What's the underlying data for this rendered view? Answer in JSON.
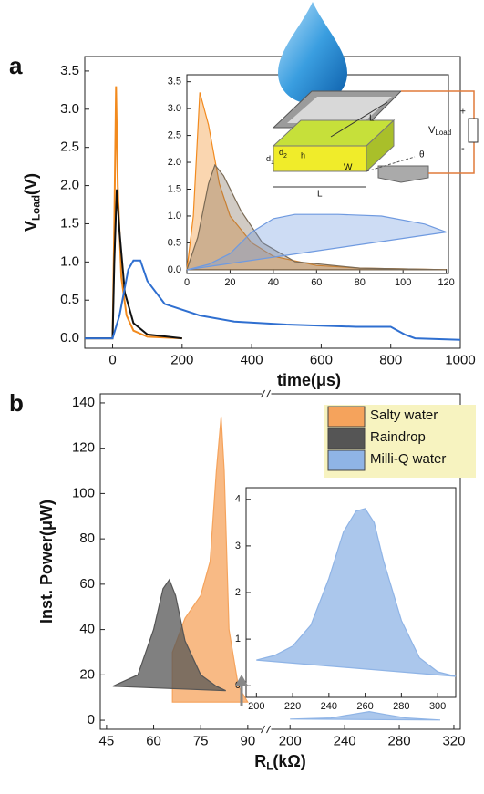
{
  "chart_data": [
    {
      "type": "line",
      "panel_label": "a",
      "y_label": {
        "text": "V",
        "sub": "Load",
        "suffix": "(V)"
      },
      "x_label": "time(μs)",
      "xlim": [
        -80,
        1000
      ],
      "xticks": [
        0,
        200,
        400,
        600,
        800,
        1000
      ],
      "ylim": [
        -0.13,
        3.69
      ],
      "yticks": [
        {
          "value": 0,
          "label": "0.0"
        },
        0.5,
        {
          "value": 1,
          "label": "1.0"
        },
        1.5,
        {
          "value": 2,
          "label": "2.0"
        },
        2.5,
        {
          "value": 3,
          "label": "3.0"
        },
        3.5
      ],
      "series": [
        {
          "color": "#f28a1e",
          "x": [
            -80,
            0,
            5,
            10,
            15,
            25,
            40,
            60,
            100,
            200
          ],
          "values": [
            0,
            0,
            1.5,
            3.3,
            2.0,
            0.8,
            0.3,
            0.1,
            0.02,
            0
          ]
        },
        {
          "color": "#111111",
          "x": [
            -80,
            0,
            5,
            12,
            20,
            35,
            60,
            100,
            200
          ],
          "values": [
            0,
            0,
            1.0,
            1.95,
            1.4,
            0.6,
            0.2,
            0.05,
            0
          ]
        },
        {
          "color": "#2f6fd0",
          "x": [
            -80,
            0,
            20,
            45,
            60,
            80,
            100,
            150,
            250,
            350,
            500,
            700,
            800,
            840,
            870,
            1000
          ],
          "values": [
            0,
            0,
            0.3,
            0.9,
            1.02,
            1.02,
            0.75,
            0.45,
            0.3,
            0.22,
            0.18,
            0.15,
            0.15,
            0.05,
            0,
            -0.02
          ]
        }
      ]
    },
    {
      "type": "area",
      "xlim": [
        0,
        121
      ],
      "xticks": [
        0,
        20,
        40,
        60,
        80,
        100,
        120
      ],
      "ylim": [
        -0.07,
        3.63
      ],
      "yticks": [
        {
          "value": 0,
          "label": "0.0"
        },
        0.5,
        {
          "value": 1,
          "label": "1.0"
        },
        1.5,
        {
          "value": 2,
          "label": "2.0"
        },
        2.5,
        {
          "value": 3,
          "label": "3.0"
        },
        3.5
      ],
      "series": [
        {
          "color": "#f28a1e",
          "x": [
            0,
            3,
            6,
            10,
            15,
            20,
            30,
            40,
            60,
            80,
            120
          ],
          "values": [
            0,
            1,
            3.3,
            2.7,
            1.6,
            1.0,
            0.5,
            0.25,
            0.08,
            0.03,
            0
          ]
        },
        {
          "color": "#7a6a55",
          "x": [
            0,
            5,
            10,
            13,
            17,
            25,
            35,
            50,
            80,
            120
          ],
          "values": [
            0,
            0.6,
            1.6,
            1.95,
            1.75,
            1.1,
            0.5,
            0.15,
            0.03,
            0
          ]
        },
        {
          "color": "#6f9ae0",
          "x": [
            0,
            10,
            20,
            30,
            40,
            50,
            70,
            90,
            110,
            120
          ],
          "values": [
            0,
            0.1,
            0.3,
            0.7,
            0.95,
            1.03,
            1.03,
            1.0,
            0.85,
            0.7
          ]
        }
      ]
    },
    {
      "type": "area",
      "panel_label": "b",
      "y_label": "Inst. Power(μW)",
      "x_label": {
        "text": "R",
        "sub": "L",
        "suffix": "(kΩ)"
      },
      "x_segments": [
        {
          "xlim": [
            43,
            94.4
          ],
          "xticks": [
            45,
            60,
            75,
            90
          ]
        },
        {
          "xlim": [
            186.5,
            324.7
          ],
          "xticks": [
            200,
            240,
            280,
            320
          ]
        }
      ],
      "ylim": [
        -4,
        144
      ],
      "yticks": [
        0,
        20,
        40,
        60,
        80,
        100,
        120,
        140
      ],
      "series": [
        {
          "name": "Salty water",
          "color": "#f5a35c",
          "segment": 0,
          "x": [
            66,
            66,
            70,
            75,
            78,
            80,
            81.5,
            82.5,
            84,
            87,
            90
          ],
          "values": [
            8,
            30,
            45,
            55,
            70,
            110,
            134,
            110,
            40,
            15,
            8
          ]
        },
        {
          "name": "Raindrop",
          "color": "#555555",
          "segment": 0,
          "x": [
            47,
            55,
            60,
            63,
            65,
            67,
            70,
            75,
            80,
            83
          ],
          "values": [
            15,
            20,
            40,
            58,
            62,
            55,
            35,
            20,
            15,
            13
          ]
        },
        {
          "name": "Milli-Q water",
          "color": "#8fb4e6",
          "segment": 1,
          "x": [
            200,
            230,
            245,
            258,
            270,
            285,
            310
          ],
          "values": [
            0.5,
            1,
            2.5,
            3.8,
            2.5,
            1,
            0.1
          ]
        }
      ]
    },
    {
      "type": "area",
      "xlim": [
        194.3,
        310
      ],
      "xticks": [
        200,
        220,
        240,
        260,
        280,
        300
      ],
      "ylim": [
        -0.25,
        4.25
      ],
      "yticks": [
        0,
        1,
        2,
        3,
        4
      ],
      "series": [
        {
          "color": "#8fb4e6",
          "x": [
            200,
            210,
            220,
            230,
            240,
            248,
            255,
            260,
            265,
            270,
            280,
            290,
            300,
            310
          ],
          "values": [
            0.55,
            0.65,
            0.85,
            1.3,
            2.3,
            3.3,
            3.75,
            3.8,
            3.5,
            2.7,
            1.4,
            0.6,
            0.3,
            0.2
          ]
        }
      ]
    }
  ],
  "schematic": {
    "d1": {
      "text": "d",
      "sub": "1"
    },
    "d2": {
      "text": "d",
      "sub": "2"
    },
    "h": "h",
    "w": "W",
    "l_top": "L",
    "l_bottom": "L",
    "theta": "θ",
    "v_load": {
      "text": "V",
      "sub": "Load"
    },
    "plus": "+",
    "minus": "-"
  }
}
